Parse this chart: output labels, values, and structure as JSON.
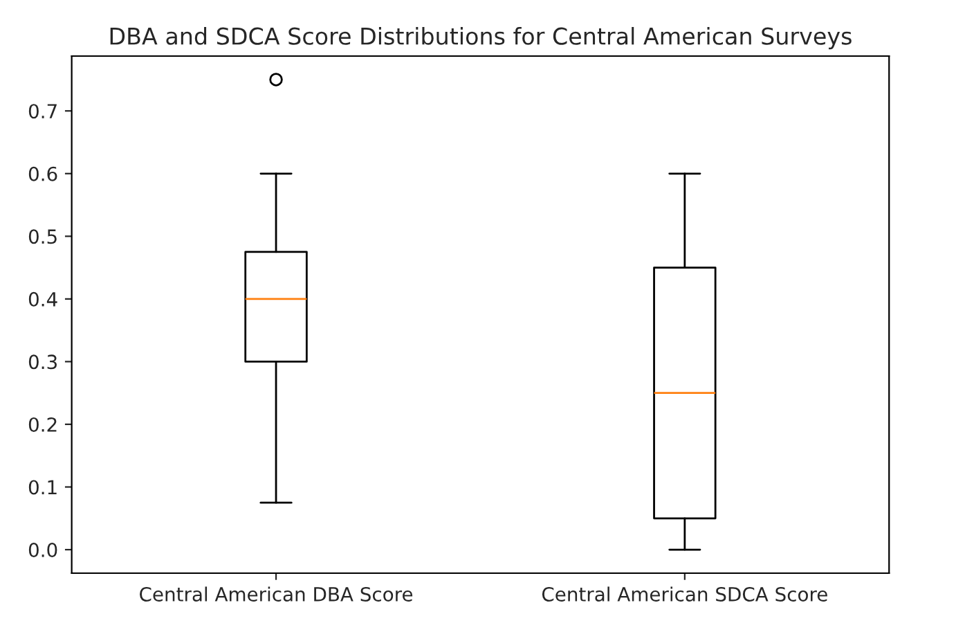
{
  "chart_data": {
    "type": "box",
    "title": "DBA and SDCA Score Distributions for Central American Surveys",
    "categories": [
      "Central American DBA Score",
      "Central American SDCA Score"
    ],
    "boxes": [
      {
        "low": 0.075,
        "q1": 0.3,
        "median": 0.4,
        "q3": 0.475,
        "high": 0.6,
        "outliers": [
          0.75
        ]
      },
      {
        "low": 0.0,
        "q1": 0.05,
        "median": 0.25,
        "q3": 0.45,
        "high": 0.6
      }
    ],
    "ylim": [
      -0.0375,
      0.7875
    ],
    "yticks": [
      {
        "value": 0,
        "label": "0.0"
      },
      0.1,
      0.2,
      0.3,
      0.4,
      0.5,
      0.6,
      0.7
    ],
    "grid": false
  }
}
